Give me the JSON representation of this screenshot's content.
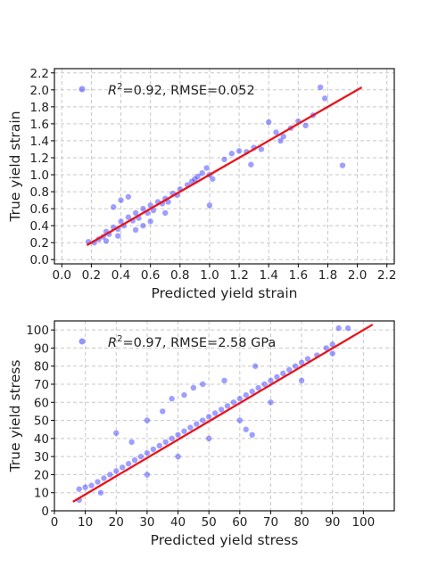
{
  "chart_data": [
    {
      "type": "scatter",
      "title": "",
      "xlabel": "Predicted yield strain",
      "ylabel": "True yield strain",
      "xlim": [
        -0.05,
        2.25
      ],
      "ylim": [
        -0.05,
        2.25
      ],
      "xticks": [
        "0.0",
        "0.2",
        "0.4",
        "0.6",
        "0.8",
        "1.0",
        "1.2",
        "1.4",
        "1.6",
        "1.8",
        "2.0",
        "2.2"
      ],
      "yticks": [
        "0.0",
        "0.2",
        "0.4",
        "0.6",
        "0.8",
        "1.0",
        "1.2",
        "1.4",
        "1.6",
        "1.8",
        "2.0",
        "2.2"
      ],
      "grid": true,
      "legend": "top-left",
      "annotation": {
        "prefix": "R",
        "sup": "2",
        "text": "=0.92, RMSE=0.052"
      },
      "point_color": "#2b2bff",
      "fit_color": "#e8141b",
      "fit_line": {
        "x": [
          0.17,
          2.03
        ],
        "y": [
          0.17,
          2.03
        ]
      },
      "points": [
        [
          0.18,
          0.21
        ],
        [
          0.22,
          0.2
        ],
        [
          0.25,
          0.24
        ],
        [
          0.28,
          0.27
        ],
        [
          0.3,
          0.33
        ],
        [
          0.32,
          0.3
        ],
        [
          0.35,
          0.38
        ],
        [
          0.38,
          0.36
        ],
        [
          0.4,
          0.45
        ],
        [
          0.42,
          0.4
        ],
        [
          0.45,
          0.5
        ],
        [
          0.48,
          0.46
        ],
        [
          0.5,
          0.55
        ],
        [
          0.52,
          0.49
        ],
        [
          0.55,
          0.6
        ],
        [
          0.58,
          0.55
        ],
        [
          0.6,
          0.64
        ],
        [
          0.62,
          0.58
        ],
        [
          0.65,
          0.68
        ],
        [
          0.68,
          0.66
        ],
        [
          0.7,
          0.72
        ],
        [
          0.72,
          0.68
        ],
        [
          0.75,
          0.78
        ],
        [
          0.78,
          0.76
        ],
        [
          0.8,
          0.83
        ],
        [
          0.85,
          0.88
        ],
        [
          0.88,
          0.92
        ],
        [
          0.9,
          0.95
        ],
        [
          0.92,
          0.98
        ],
        [
          0.95,
          1.02
        ],
        [
          0.98,
          1.08
        ],
        [
          1.0,
          1.0
        ],
        [
          1.02,
          0.95
        ],
        [
          1.0,
          0.64
        ],
        [
          1.15,
          1.25
        ],
        [
          1.2,
          1.28
        ],
        [
          1.25,
          1.27
        ],
        [
          1.3,
          1.32
        ],
        [
          1.35,
          1.3
        ],
        [
          1.4,
          1.62
        ],
        [
          1.45,
          1.5
        ],
        [
          1.5,
          1.45
        ],
        [
          1.55,
          1.55
        ],
        [
          1.6,
          1.63
        ],
        [
          1.65,
          1.58
        ],
        [
          1.7,
          1.7
        ],
        [
          1.75,
          2.03
        ],
        [
          1.78,
          1.9
        ],
        [
          1.9,
          1.11
        ],
        [
          0.35,
          0.62
        ],
        [
          0.4,
          0.7
        ],
        [
          0.45,
          0.74
        ],
        [
          0.3,
          0.22
        ],
        [
          0.38,
          0.28
        ],
        [
          0.5,
          0.35
        ],
        [
          0.55,
          0.4
        ],
        [
          0.6,
          0.45
        ],
        [
          0.7,
          0.55
        ],
        [
          1.1,
          1.18
        ],
        [
          1.28,
          1.12
        ],
        [
          1.48,
          1.4
        ]
      ]
    },
    {
      "type": "scatter",
      "title": "",
      "xlabel": "Predicted yield stress",
      "ylabel": "True yield stress",
      "xlim": [
        0,
        110
      ],
      "ylim": [
        0,
        105
      ],
      "xticks": [
        "0",
        "10",
        "20",
        "30",
        "40",
        "50",
        "60",
        "70",
        "80",
        "90",
        "100"
      ],
      "yticks": [
        "0",
        "10",
        "20",
        "30",
        "40",
        "50",
        "60",
        "70",
        "80",
        "90",
        "100"
      ],
      "grid": true,
      "legend": "top-left",
      "annotation": {
        "prefix": "R",
        "sup": "2",
        "text": "=0.97, RMSE=2.58 GPa"
      },
      "point_color": "#2b2bff",
      "fit_color": "#e8141b",
      "fit_line": {
        "x": [
          6,
          103
        ],
        "y": [
          5,
          103
        ]
      },
      "points": [
        [
          8,
          12
        ],
        [
          10,
          13
        ],
        [
          12,
          14
        ],
        [
          14,
          16
        ],
        [
          16,
          18
        ],
        [
          18,
          20
        ],
        [
          20,
          22
        ],
        [
          22,
          24
        ],
        [
          24,
          26
        ],
        [
          26,
          28
        ],
        [
          28,
          30
        ],
        [
          30,
          32
        ],
        [
          32,
          34
        ],
        [
          34,
          36
        ],
        [
          36,
          38
        ],
        [
          38,
          40
        ],
        [
          40,
          42
        ],
        [
          42,
          44
        ],
        [
          44,
          46
        ],
        [
          46,
          48
        ],
        [
          48,
          50
        ],
        [
          50,
          52
        ],
        [
          52,
          54
        ],
        [
          54,
          56
        ],
        [
          56,
          58
        ],
        [
          58,
          60
        ],
        [
          60,
          62
        ],
        [
          62,
          64
        ],
        [
          64,
          66
        ],
        [
          66,
          68
        ],
        [
          68,
          70
        ],
        [
          70,
          72
        ],
        [
          72,
          74
        ],
        [
          74,
          76
        ],
        [
          76,
          78
        ],
        [
          78,
          80
        ],
        [
          80,
          82
        ],
        [
          82,
          84
        ],
        [
          85,
          86
        ],
        [
          88,
          90
        ],
        [
          90,
          92
        ],
        [
          92,
          101
        ],
        [
          95,
          101
        ],
        [
          20,
          43
        ],
        [
          25,
          38
        ],
        [
          30,
          50
        ],
        [
          35,
          55
        ],
        [
          38,
          62
        ],
        [
          42,
          64
        ],
        [
          45,
          68
        ],
        [
          62,
          45
        ],
        [
          64,
          42
        ],
        [
          30,
          20
        ],
        [
          40,
          30
        ],
        [
          50,
          40
        ],
        [
          60,
          50
        ],
        [
          15,
          10
        ],
        [
          70,
          60
        ],
        [
          80,
          72
        ],
        [
          90,
          87
        ],
        [
          55,
          72
        ],
        [
          48,
          70
        ],
        [
          65,
          80
        ],
        [
          8,
          6
        ]
      ]
    }
  ]
}
